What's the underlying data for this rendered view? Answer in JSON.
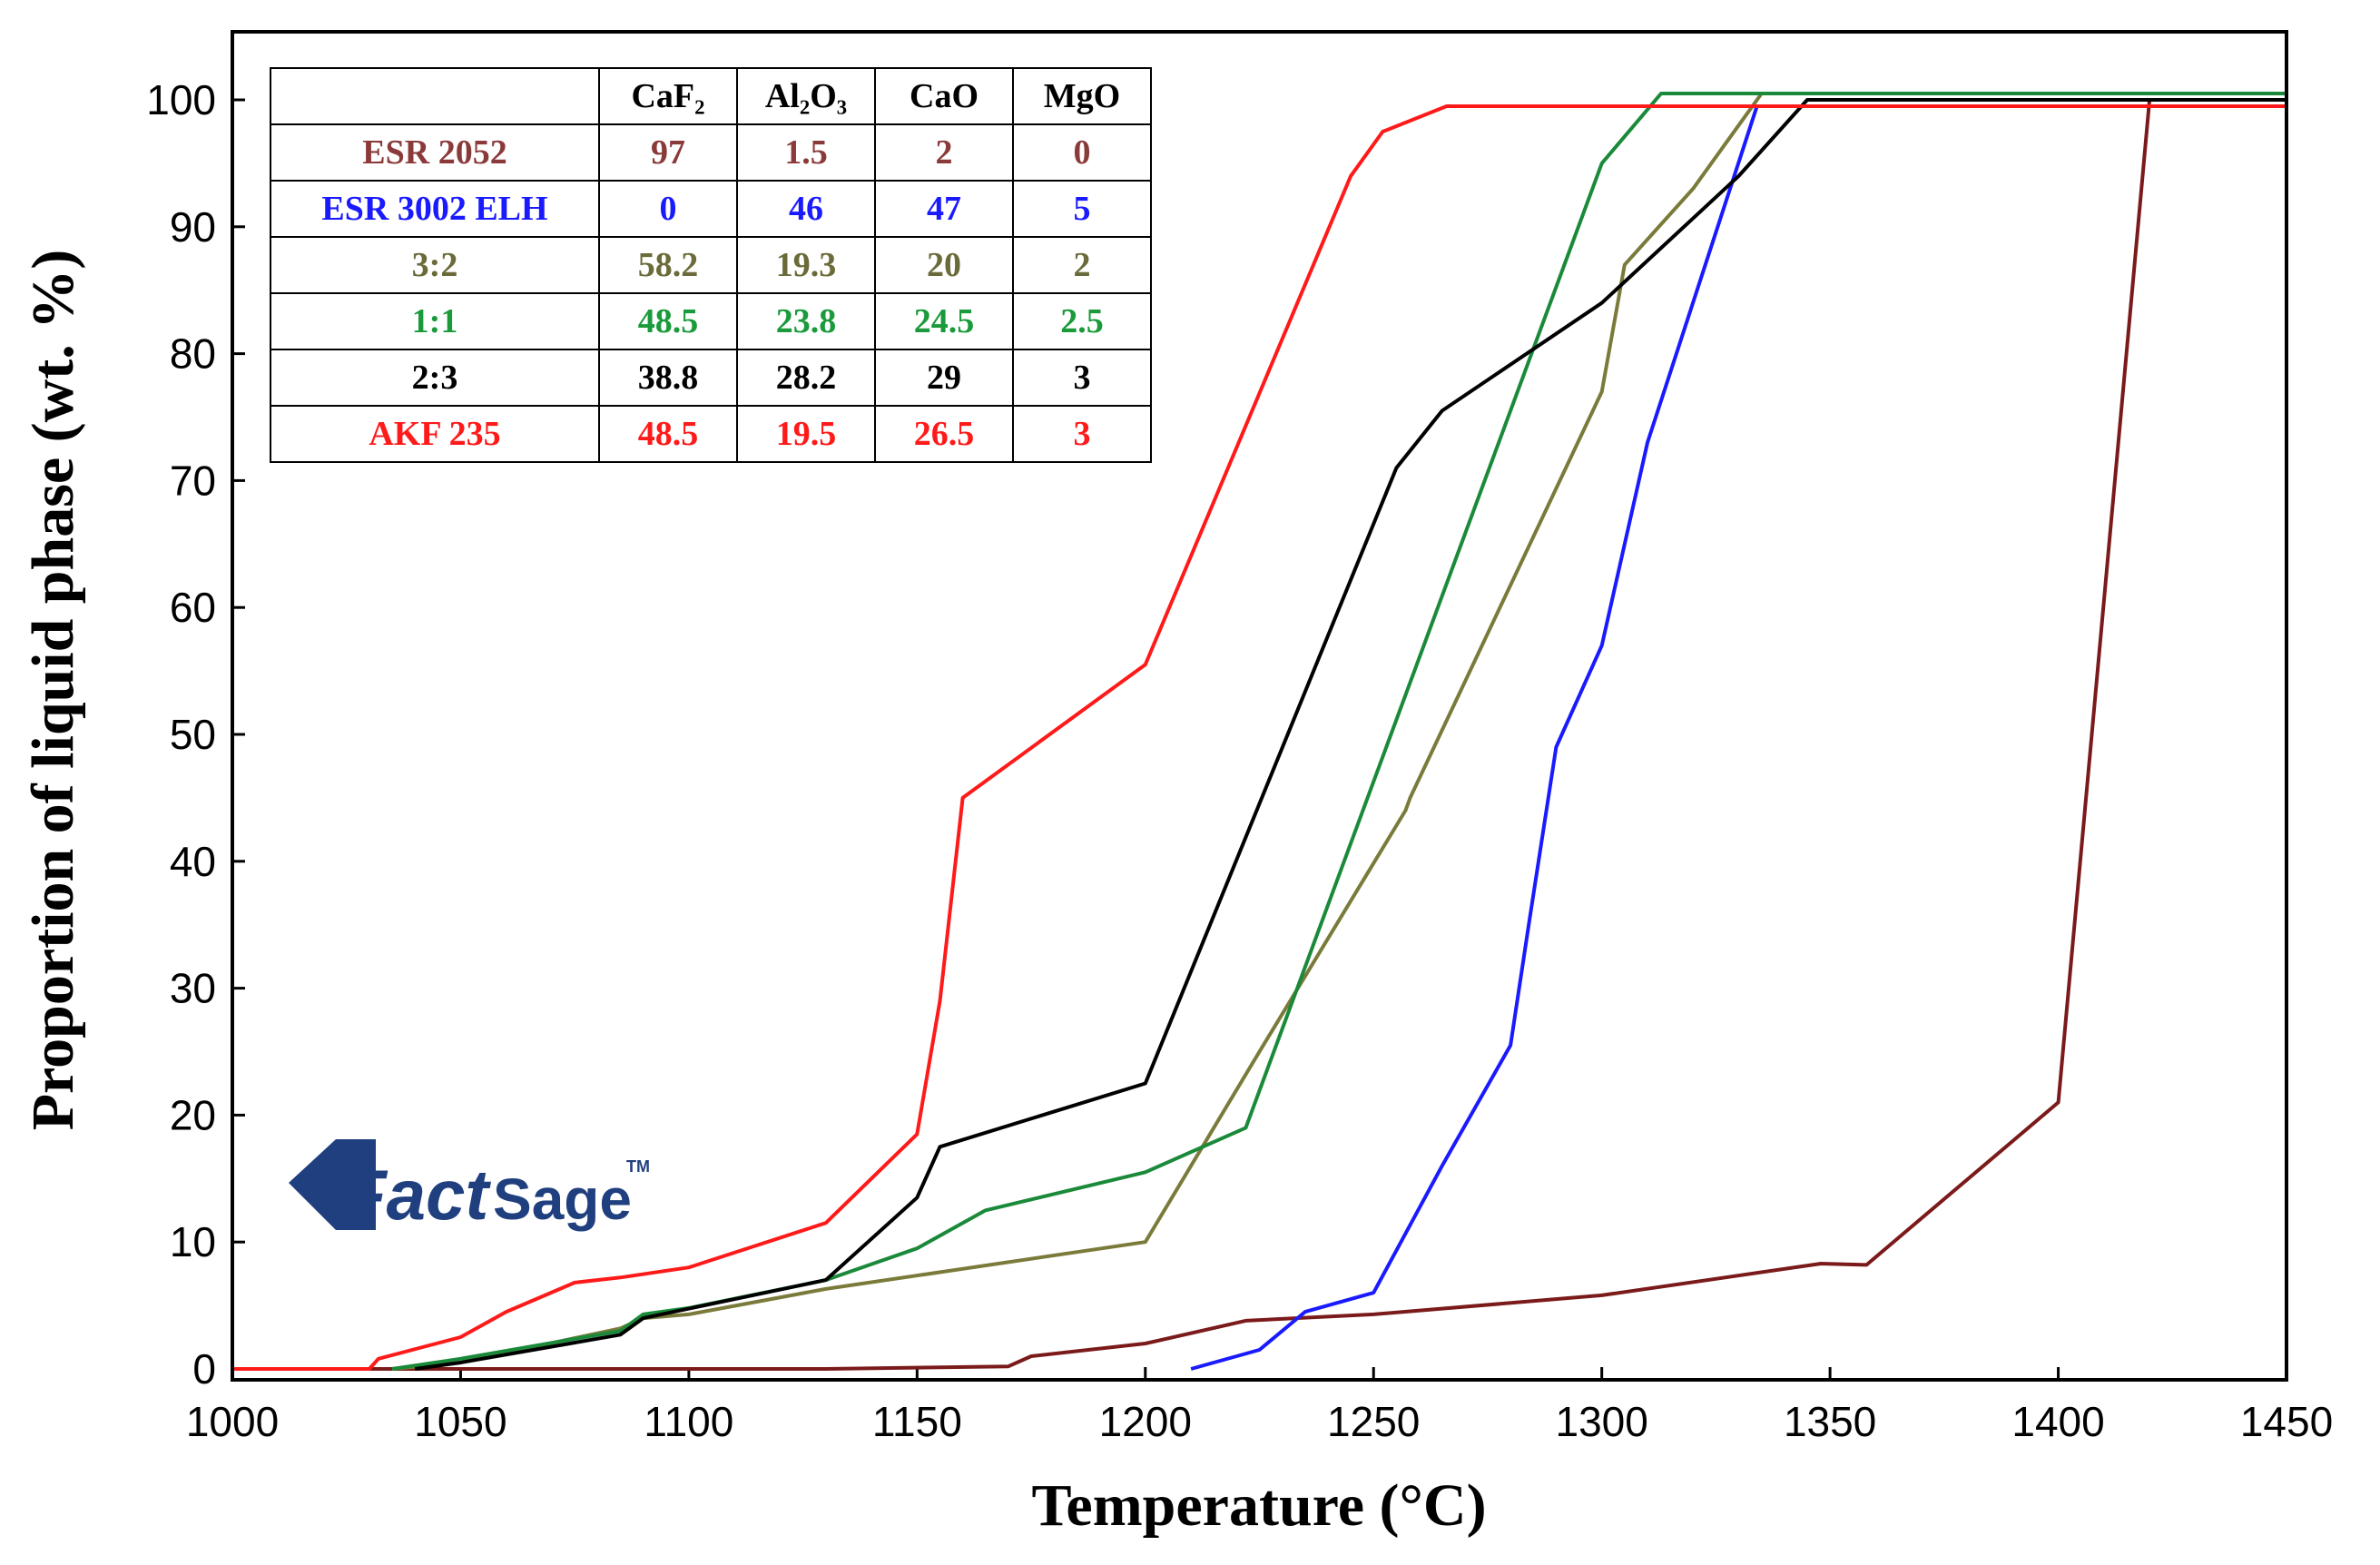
{
  "chart_data": {
    "type": "line",
    "xlabel": "Temperature (°C)",
    "ylabel": "Proportion of liquid phase (wt. %)",
    "xlim": [
      1000,
      1450
    ],
    "ylim": [
      0,
      105
    ],
    "xticks": [
      1000,
      1050,
      1100,
      1150,
      1200,
      1250,
      1300,
      1350,
      1400,
      1450
    ],
    "yticks": [
      0,
      10,
      20,
      30,
      40,
      50,
      60,
      70,
      80,
      90,
      100
    ],
    "series": [
      {
        "name": "ESR 2052",
        "color": "#7B1A1A",
        "x": [
          1000,
          1130,
          1170,
          1175,
          1200,
          1222,
          1250,
          1300,
          1348,
          1358,
          1400,
          1420,
          1450
        ],
        "y": [
          0,
          0,
          0.2,
          1,
          2,
          3.8,
          4.3,
          5.8,
          8.3,
          8.2,
          21,
          100,
          100
        ]
      },
      {
        "name": "ESR 3002 ELH",
        "color": "#1A1AFF",
        "x": [
          1210,
          1225,
          1235,
          1250,
          1265,
          1280,
          1284,
          1290,
          1300,
          1310,
          1334,
          1450
        ],
        "y": [
          0,
          1.5,
          4.5,
          6,
          16,
          25.5,
          35,
          49,
          57,
          73,
          99.5,
          99.5
        ]
      },
      {
        "name": "3:2",
        "color": "#7A7A3A",
        "x": [
          1035,
          1050,
          1085,
          1090,
          1100,
          1130,
          1200,
          1225,
          1257,
          1258,
          1300,
          1305,
          1320,
          1335,
          1450
        ],
        "y": [
          0,
          0.5,
          3.2,
          4,
          4.3,
          6.3,
          10,
          25,
          44,
          45,
          77,
          87,
          93,
          100.5,
          100.5
        ]
      },
      {
        "name": "1:1",
        "color": "#1A8A3A",
        "x": [
          1035,
          1050,
          1085,
          1090,
          1100,
          1130,
          1150,
          1165,
          1200,
          1222,
          1300,
          1313,
          1450
        ],
        "y": [
          0,
          0.8,
          3,
          4.3,
          4.8,
          7,
          9.5,
          12.5,
          15.5,
          19,
          95,
          100.5,
          100.5
        ]
      },
      {
        "name": "2:3",
        "color": "#000000",
        "x": [
          1040,
          1050,
          1085,
          1090,
          1130,
          1150,
          1155,
          1200,
          1255,
          1265,
          1300,
          1330,
          1345,
          1450
        ],
        "y": [
          0,
          0.5,
          2.7,
          4,
          7,
          13.5,
          17.5,
          22.5,
          71,
          75.5,
          84,
          94,
          100,
          100
        ]
      },
      {
        "name": "AKF 235",
        "color": "#FF1A1A",
        "x": [
          1000,
          1030,
          1032,
          1050,
          1060,
          1075,
          1085,
          1100,
          1130,
          1150,
          1155,
          1160,
          1200,
          1245,
          1252,
          1266,
          1450
        ],
        "y": [
          0,
          0,
          0.8,
          2.5,
          4.5,
          6.8,
          7.2,
          8,
          11.5,
          18.5,
          29,
          45,
          55.5,
          94,
          97.5,
          99.5,
          99.5
        ]
      }
    ],
    "legend_table": {
      "headers": [
        "CaF₂",
        "Al₂O₃",
        "CaO",
        "MgO"
      ],
      "rows": [
        {
          "name": "ESR 2052",
          "color": "#8B3A3A",
          "values": [
            "97",
            "1.5",
            "2",
            "0"
          ]
        },
        {
          "name": "ESR 3002 ELH",
          "color": "#1A1AFF",
          "values": [
            "0",
            "46",
            "47",
            "5"
          ]
        },
        {
          "name": "3:2",
          "color": "#6B6B3A",
          "values": [
            "58.2",
            "19.3",
            "20",
            "2"
          ]
        },
        {
          "name": "1:1",
          "color": "#1A9A3A",
          "values": [
            "48.5",
            "23.8",
            "24.5",
            "2.5"
          ]
        },
        {
          "name": "2:3",
          "color": "#000000",
          "values": [
            "38.8",
            "28.2",
            "29",
            "3"
          ]
        },
        {
          "name": "AKF 235",
          "color": "#FF1A1A",
          "values": [
            "48.5",
            "19.5",
            "26.5",
            "3"
          ]
        }
      ]
    }
  },
  "logo": {
    "text_fact": "Fact",
    "text_sage": "Sage",
    "tm": "TM",
    "color": "#1F3F7F"
  }
}
